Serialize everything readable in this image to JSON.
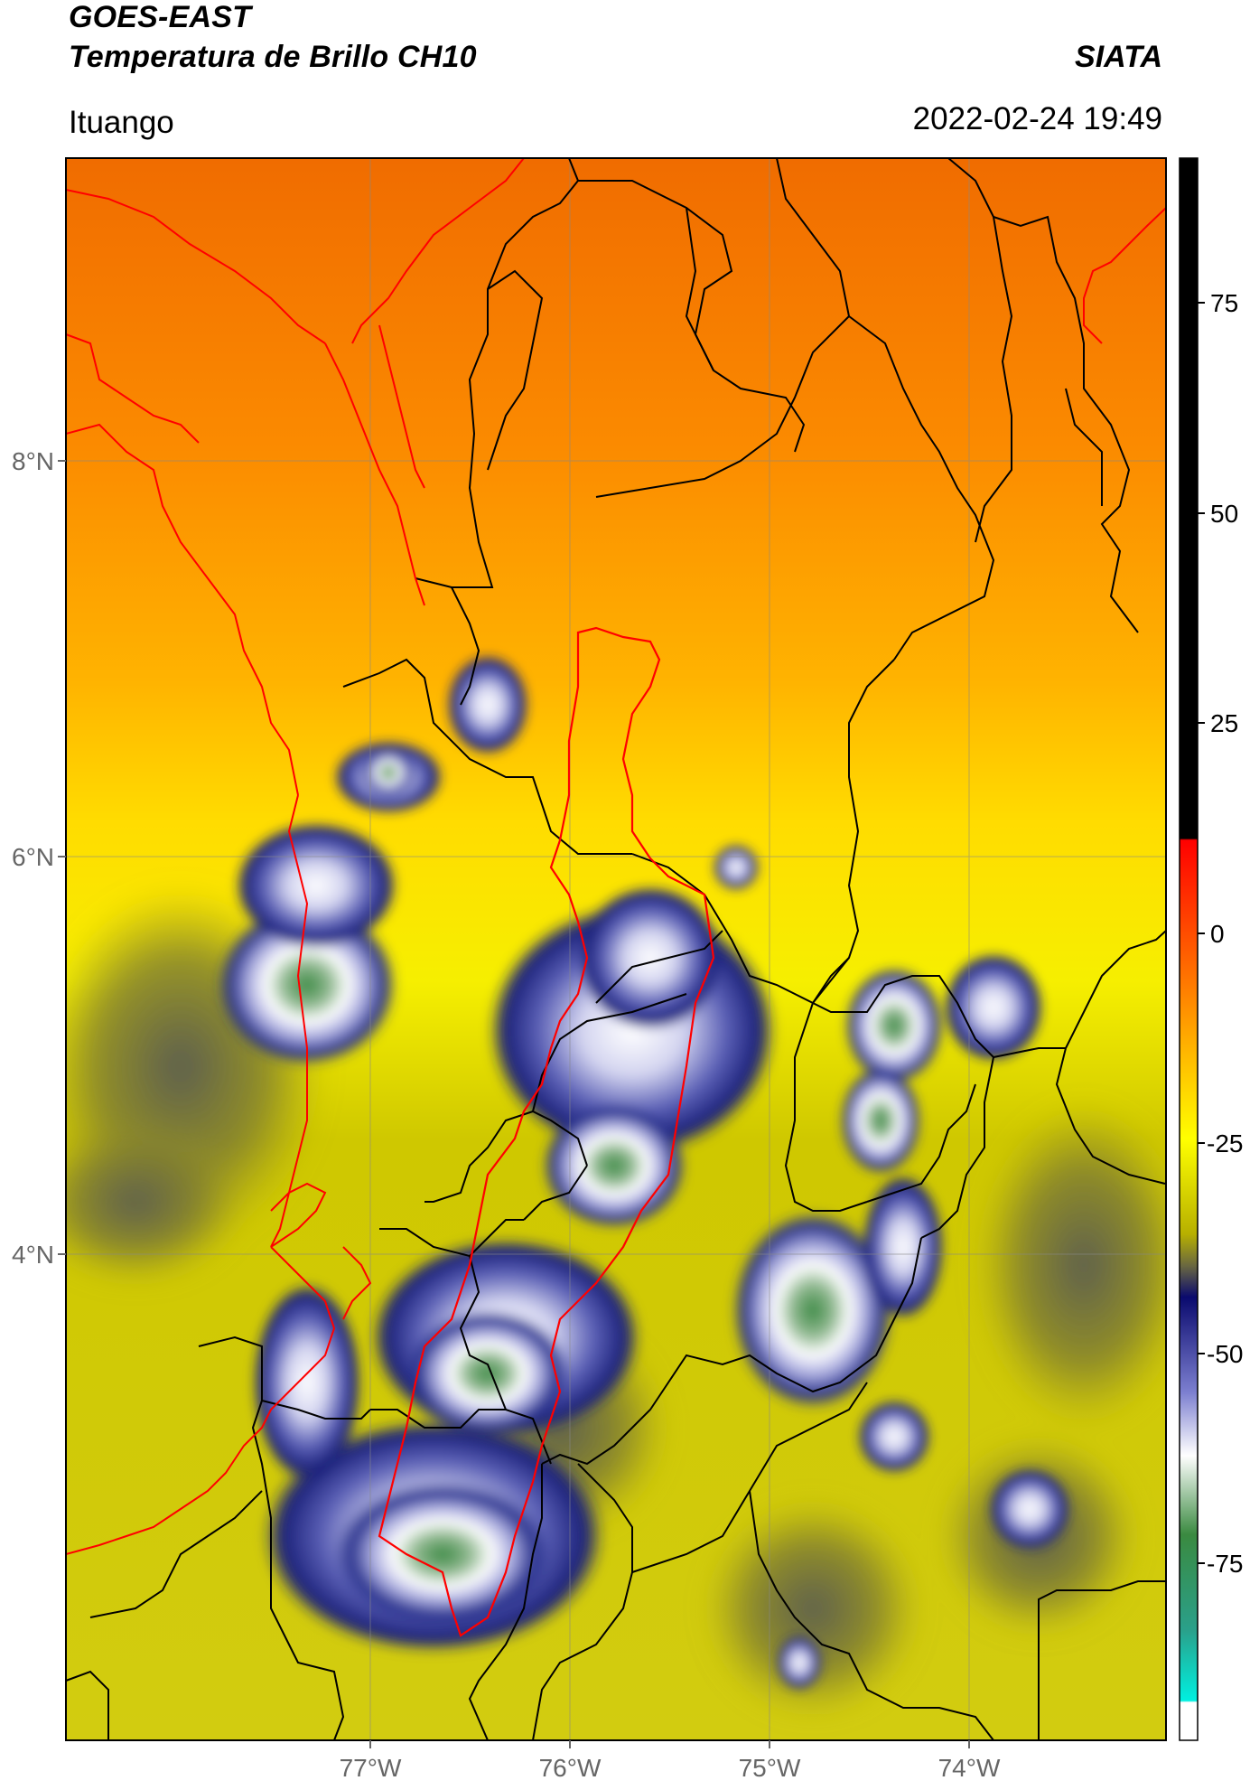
{
  "header": {
    "satellite": "GOES-EAST",
    "product": "Temperatura de Brillo CH10",
    "brand": "SIATA",
    "region": "Ituango",
    "datetime": "2022-02-24 19:49"
  },
  "map": {
    "lat_ticks": [
      "8°N",
      "6°N",
      "4°N"
    ],
    "lon_ticks": [
      "77°W",
      "76°W",
      "75°W",
      "74°W"
    ],
    "colors": {
      "warm_top": "#f07000",
      "orange": "#ff9a00",
      "yellow": "#f2ea00",
      "olive": "#c7c000",
      "dark_olive": "#7f7d30",
      "navy": "#1a1f7a",
      "lavender": "#b7b8e6",
      "white": "#ffffff",
      "green": "#3d8f4a",
      "border_country": "#ff0000",
      "border_dept": "#000000"
    }
  },
  "colorbar": {
    "ticks": [
      "75",
      "50",
      "25",
      "0",
      "-25",
      "-50",
      "-75"
    ],
    "tick_values": [
      75,
      50,
      25,
      0,
      -25,
      -50,
      -75
    ],
    "range": [
      -90,
      90
    ]
  }
}
